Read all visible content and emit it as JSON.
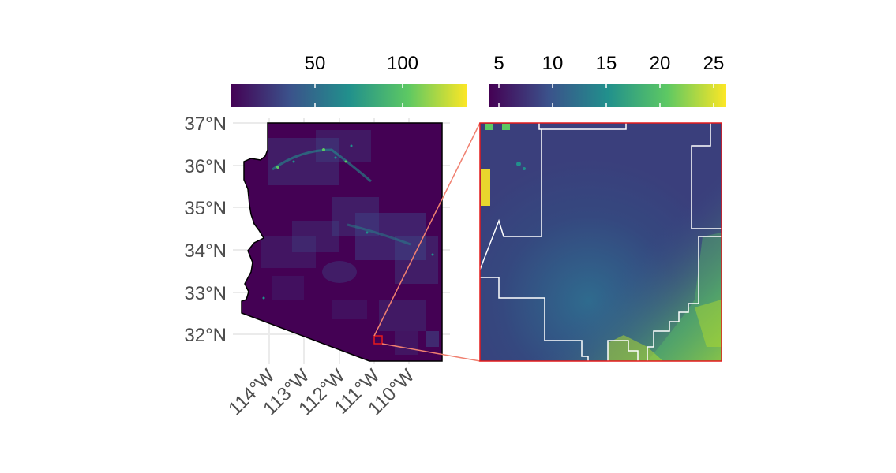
{
  "main_map": {
    "lat_labels": [
      "37°N",
      "36°N",
      "35°N",
      "34°N",
      "33°N",
      "32°N"
    ],
    "lon_labels": [
      "114°W",
      "113°W",
      "112°W",
      "111°W",
      "110°W"
    ]
  },
  "colorbar_left": {
    "tick_labels": [
      "50",
      "100"
    ]
  },
  "colorbar_right": {
    "tick_labels": [
      "5",
      "10",
      "15",
      "20",
      "25"
    ]
  },
  "colors": {
    "low": "#440154",
    "mid_low": "#3b528b",
    "mid": "#21908c",
    "mid_high": "#5dc863",
    "high": "#fde725",
    "grid": "#ebebeb",
    "inset_frame": "#e41a1c",
    "connector": "#f08070"
  }
}
